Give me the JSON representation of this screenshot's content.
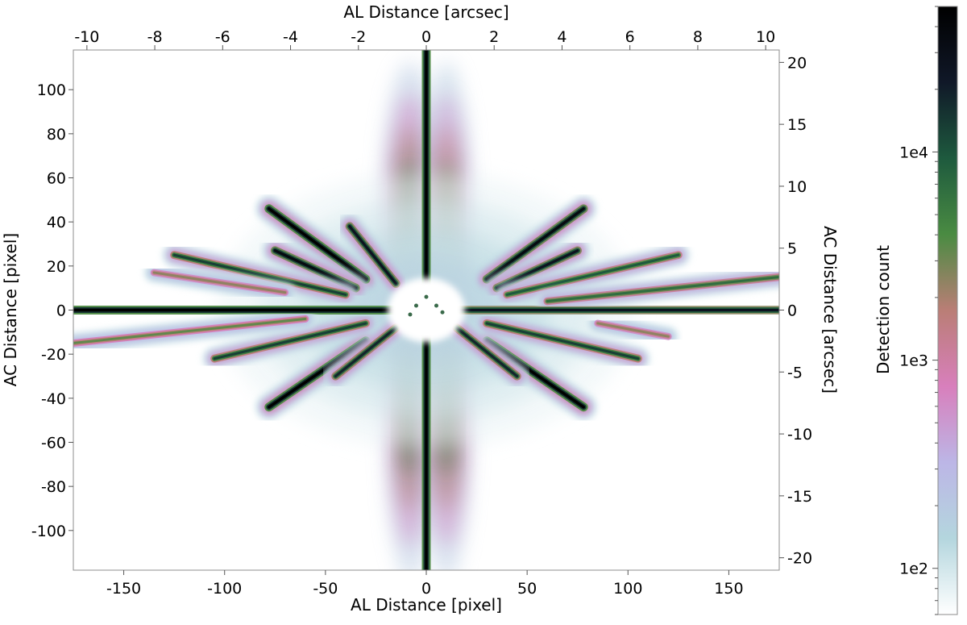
{
  "chart_data": {
    "type": "heatmap",
    "title": "",
    "xlabel_bottom": "AL Distance [pixel]",
    "xlabel_top": "AL Distance [arcsec]",
    "ylabel_left": "AC Distance [pixel]",
    "ylabel_right": "AC Distance [arcsec]",
    "colorbar_label": "Detection count",
    "xlim_pixel": [
      -175,
      175
    ],
    "ylim_pixel": [
      -118,
      118
    ],
    "xlim_arcsec": [
      -10.4,
      10.4
    ],
    "ylim_arcsec": [
      -21,
      21
    ],
    "colorbar_range": [
      60,
      50000
    ],
    "colorbar_scale": "log",
    "x_ticks_bottom": [
      -150,
      -100,
      -50,
      0,
      50,
      100,
      150
    ],
    "x_tick_labels_bottom": [
      "-150",
      "-100",
      "-50",
      "0",
      "50",
      "100",
      "150"
    ],
    "x_ticks_top": [
      -10,
      -8,
      -6,
      -4,
      -2,
      0,
      2,
      4,
      6,
      8,
      10
    ],
    "x_tick_labels_top": [
      "-10",
      "-8",
      "-6",
      "-4",
      "-2",
      "0",
      "2",
      "4",
      "6",
      "8",
      "10"
    ],
    "y_ticks_left": [
      100,
      80,
      60,
      40,
      20,
      0,
      -20,
      -40,
      -60,
      -80,
      -100
    ],
    "y_tick_labels_left": [
      "100",
      "80",
      "60",
      "40",
      "20",
      "0",
      "-20",
      "-40",
      "-60",
      "-80",
      "-100"
    ],
    "y_ticks_right": [
      20,
      15,
      10,
      5,
      0,
      -5,
      -10,
      -15,
      -20
    ],
    "y_tick_labels_right": [
      "20",
      "15",
      "10",
      "5",
      "0",
      "-5",
      "-10",
      "-15",
      "-20"
    ],
    "colorbar_ticks": [
      10000,
      1000,
      100
    ],
    "colorbar_tick_labels": [
      "1e4",
      "1e3",
      "1e2"
    ],
    "colormap": [
      "#ffffff",
      "#b4d6de",
      "#bcb6e6",
      "#d87fbc",
      "#ba7e76",
      "#4a8b42",
      "#1e5a3e",
      "#101828",
      "#000000"
    ],
    "spikes": [
      {
        "x1": -175,
        "y1": 0,
        "x2": -5,
        "y2": 0,
        "peak": 1.0
      },
      {
        "x1": 5,
        "y1": 0,
        "x2": 175,
        "y2": 0,
        "peak": 0.9
      },
      {
        "x1": 0,
        "y1": 118,
        "x2": 0,
        "y2": 8,
        "peak": 1.0
      },
      {
        "x1": 0,
        "y1": -8,
        "x2": 0,
        "y2": -118,
        "peak": 1.0
      },
      {
        "x1": -78,
        "y1": 46,
        "x2": -30,
        "y2": 14,
        "peak": 1.0
      },
      {
        "x1": -75,
        "y1": 27,
        "x2": -35,
        "y2": 10,
        "peak": 0.95
      },
      {
        "x1": -38,
        "y1": 38,
        "x2": -15,
        "y2": 12,
        "peak": 0.9
      },
      {
        "x1": -125,
        "y1": 25,
        "x2": -40,
        "y2": 7,
        "peak": 0.8
      },
      {
        "x1": -135,
        "y1": 17,
        "x2": -70,
        "y2": 8,
        "peak": 0.55
      },
      {
        "x1": 78,
        "y1": 46,
        "x2": 30,
        "y2": 14,
        "peak": 0.95
      },
      {
        "x1": 75,
        "y1": 27,
        "x2": 35,
        "y2": 10,
        "peak": 0.9
      },
      {
        "x1": 125,
        "y1": 25,
        "x2": 40,
        "y2": 7,
        "peak": 0.75
      },
      {
        "x1": 175,
        "y1": 15,
        "x2": 60,
        "y2": 4,
        "peak": 0.7
      },
      {
        "x1": -78,
        "y1": -44,
        "x2": -30,
        "y2": -14,
        "peak": 1.0
      },
      {
        "x1": -105,
        "y1": -22,
        "x2": -30,
        "y2": -6,
        "peak": 0.8
      },
      {
        "x1": -175,
        "y1": -15,
        "x2": -60,
        "y2": -4,
        "peak": 0.6
      },
      {
        "x1": -45,
        "y1": -30,
        "x2": -15,
        "y2": -8,
        "peak": 0.85
      },
      {
        "x1": 78,
        "y1": -44,
        "x2": 30,
        "y2": -14,
        "peak": 1.0
      },
      {
        "x1": 105,
        "y1": -22,
        "x2": 30,
        "y2": -6,
        "peak": 0.8
      },
      {
        "x1": 45,
        "y1": -30,
        "x2": 15,
        "y2": -8,
        "peak": 0.85
      },
      {
        "x1": 120,
        "y1": -12,
        "x2": 85,
        "y2": -6,
        "peak": 0.55
      }
    ],
    "lobes": [
      {
        "x": -8,
        "y": 40,
        "rx": 14,
        "ry": 70,
        "peak": 0.7
      },
      {
        "x": 10,
        "y": 40,
        "rx": 12,
        "ry": 70,
        "peak": 0.65
      },
      {
        "x": -8,
        "y": -45,
        "rx": 12,
        "ry": 75,
        "peak": 0.7
      },
      {
        "x": 10,
        "y": -45,
        "rx": 12,
        "ry": 75,
        "peak": 0.7
      },
      {
        "x": 0,
        "y": 0,
        "rx": 100,
        "ry": 60,
        "peak": 0.15
      }
    ]
  }
}
